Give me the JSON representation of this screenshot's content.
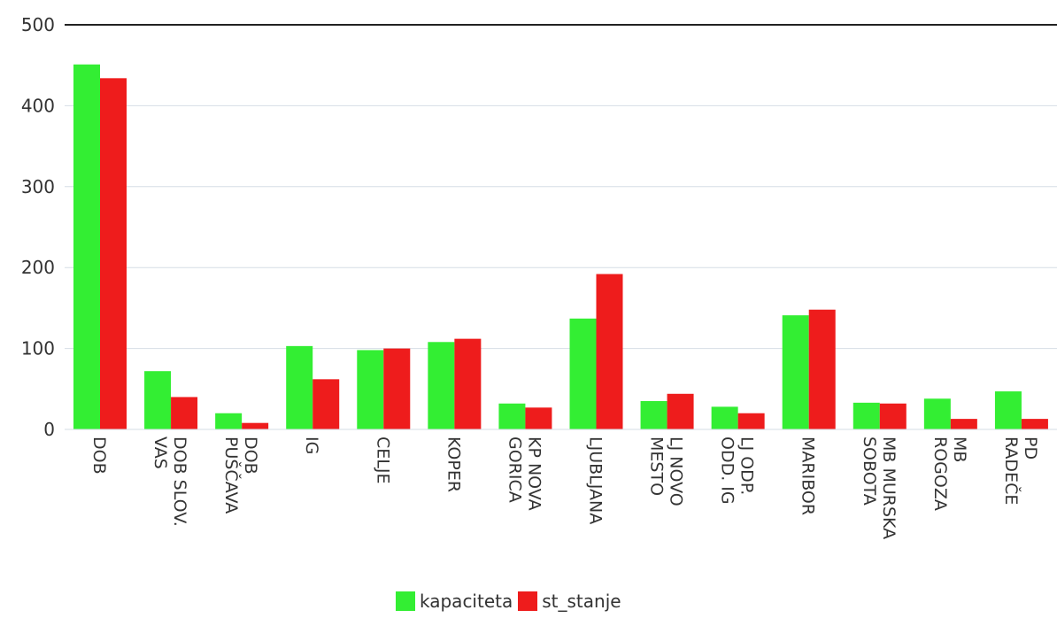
{
  "chart_data": {
    "type": "bar",
    "categories": [
      [
        "DOB"
      ],
      [
        "DOB SLOV.",
        "VAS"
      ],
      [
        "DOB",
        "PUŠČAVA"
      ],
      [
        "IG"
      ],
      [
        "CELJE"
      ],
      [
        "KOPER"
      ],
      [
        "KP NOVA",
        "GORICA"
      ],
      [
        "LJUBLJANA"
      ],
      [
        "LJ NOVO",
        "MESTO"
      ],
      [
        "LJ ODP.",
        "ODD. IG"
      ],
      [
        "MARIBOR"
      ],
      [
        "MB MURSKA",
        "SOBOTA"
      ],
      [
        "MB",
        "ROGOZA"
      ],
      [
        "PD",
        "RADEČE"
      ]
    ],
    "series": [
      {
        "name": "kapaciteta",
        "color": "#33ee33",
        "values": [
          451,
          72,
          20,
          103,
          98,
          108,
          32,
          137,
          35,
          28,
          141,
          33,
          38,
          47
        ]
      },
      {
        "name": "st_stanje",
        "color": "#ee1c1c",
        "values": [
          434,
          40,
          8,
          62,
          100,
          112,
          27,
          192,
          44,
          20,
          148,
          32,
          13,
          13
        ]
      }
    ],
    "yticks": [
      "0",
      "100",
      "200",
      "300",
      "400",
      "500"
    ],
    "ylim": [
      0,
      500
    ],
    "grid": true,
    "legend_position": "bottom-center",
    "title": "",
    "xlabel": "",
    "ylabel": ""
  }
}
